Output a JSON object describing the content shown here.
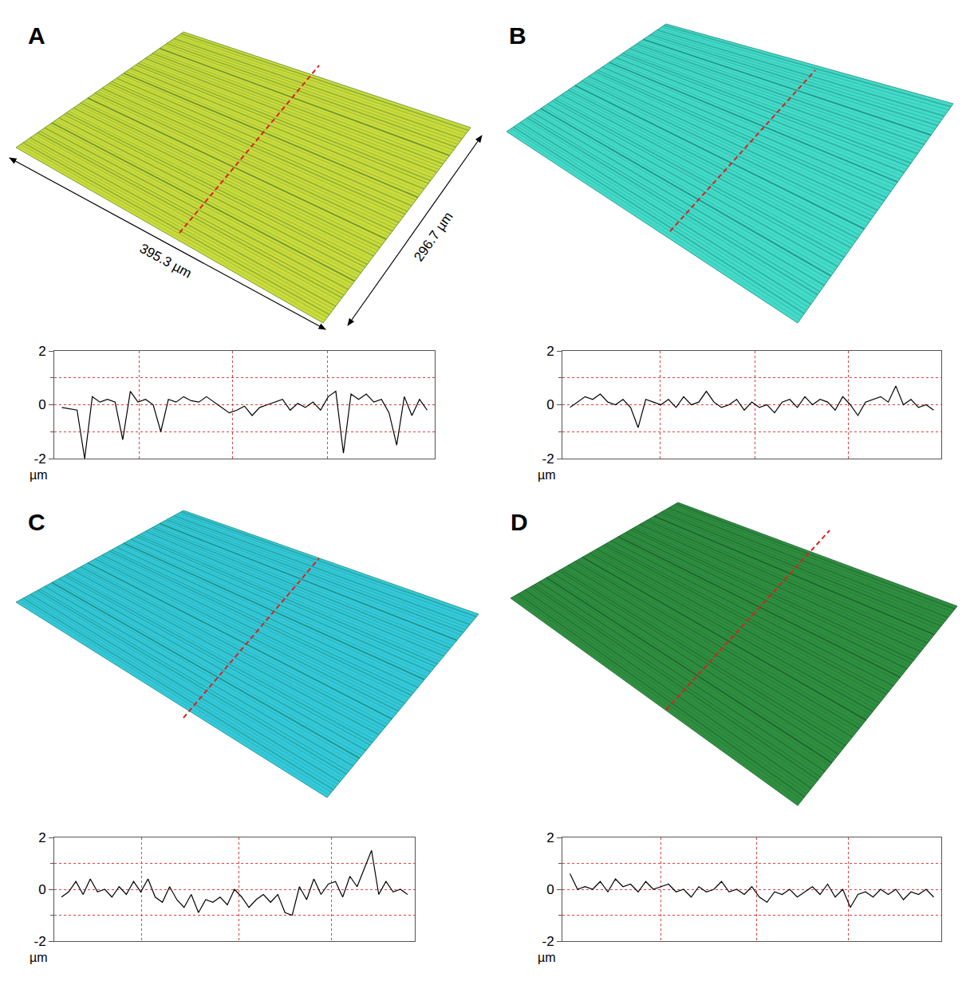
{
  "chart_data": [
    {
      "type": "line",
      "title": "A",
      "ylabel": "µm",
      "color": "#000000",
      "grid": true,
      "tick_labels": "y",
      "xlim": [
        0,
        100
      ],
      "xticks": [
        22.4,
        46.8,
        71.7
      ],
      "ylim": [
        -2,
        2
      ],
      "yticks": [
        -2,
        0,
        2
      ],
      "x": [
        2,
        4,
        6,
        8,
        10,
        12,
        14,
        16,
        18,
        20,
        22,
        24,
        26,
        28,
        30,
        32,
        34,
        36,
        38,
        40,
        42,
        44,
        46,
        48,
        50,
        52,
        54,
        56,
        58,
        60,
        62,
        64,
        66,
        68,
        70,
        72,
        74,
        76,
        78,
        80,
        82,
        84,
        86,
        88,
        90,
        92,
        94,
        96,
        98
      ],
      "values": [
        -0.1,
        -0.15,
        -0.2,
        -2.0,
        0.3,
        0.1,
        0.2,
        0.1,
        -1.3,
        0.5,
        0.1,
        0.2,
        0.0,
        -1.0,
        0.2,
        0.1,
        0.3,
        0.15,
        0.1,
        0.3,
        0.1,
        -0.1,
        -0.3,
        -0.2,
        -0.05,
        -0.4,
        -0.1,
        0.0,
        0.1,
        0.2,
        -0.2,
        0.05,
        -0.1,
        0.1,
        -0.2,
        0.3,
        0.5,
        -1.8,
        0.4,
        0.2,
        0.4,
        0.1,
        0.2,
        -0.3,
        -1.5,
        0.3,
        -0.4,
        0.2,
        -0.2
      ]
    },
    {
      "type": "line",
      "title": "B",
      "ylabel": "µm",
      "color": "#000000",
      "grid": true,
      "tick_labels": "y",
      "xlim": [
        0,
        100
      ],
      "xticks": [
        25.7,
        50.9,
        75.4
      ],
      "ylim": [
        -2,
        2
      ],
      "yticks": [
        -2,
        0,
        2
      ],
      "x": [
        2,
        4,
        6,
        8,
        10,
        12,
        14,
        16,
        18,
        20,
        22,
        24,
        26,
        28,
        30,
        32,
        34,
        36,
        38,
        40,
        42,
        44,
        46,
        48,
        50,
        52,
        54,
        56,
        58,
        60,
        62,
        64,
        66,
        68,
        70,
        72,
        74,
        76,
        78,
        80,
        82,
        84,
        86,
        88,
        90,
        92,
        94,
        96,
        98
      ],
      "values": [
        -0.1,
        0.1,
        0.3,
        0.2,
        0.4,
        0.1,
        0.0,
        0.2,
        -0.1,
        -0.85,
        0.2,
        0.1,
        0.0,
        0.2,
        -0.1,
        0.3,
        0.0,
        0.1,
        0.5,
        0.1,
        -0.1,
        0.0,
        0.2,
        -0.2,
        0.1,
        -0.1,
        0.0,
        -0.3,
        0.1,
        0.2,
        -0.1,
        0.3,
        0.0,
        0.2,
        0.1,
        -0.2,
        0.3,
        0.0,
        -0.4,
        0.1,
        0.2,
        0.3,
        0.1,
        0.7,
        0.0,
        0.2,
        -0.1,
        0.0,
        -0.2
      ]
    },
    {
      "type": "line",
      "title": "C",
      "ylabel": "µm",
      "color": "#000000",
      "grid": true,
      "tick_labels": "y",
      "xlim": [
        0,
        100
      ],
      "xticks": [
        24.3,
        51.3,
        76.8
      ],
      "ylim": [
        -2,
        2
      ],
      "yticks": [
        -2,
        0,
        2
      ],
      "x": [
        2,
        4,
        6,
        8,
        10,
        12,
        14,
        16,
        18,
        20,
        22,
        24,
        26,
        28,
        30,
        32,
        34,
        36,
        38,
        40,
        42,
        44,
        46,
        48,
        50,
        52,
        54,
        56,
        58,
        60,
        62,
        64,
        66,
        68,
        70,
        72,
        74,
        76,
        78,
        80,
        82,
        84,
        86,
        88,
        90,
        92,
        94,
        96,
        98
      ],
      "values": [
        -0.3,
        -0.1,
        0.3,
        -0.2,
        0.4,
        -0.1,
        0.0,
        -0.3,
        0.1,
        -0.2,
        0.3,
        -0.1,
        0.4,
        -0.3,
        -0.5,
        0.1,
        -0.4,
        -0.7,
        -0.2,
        -0.9,
        -0.4,
        -0.5,
        -0.3,
        -0.6,
        0.0,
        -0.3,
        -0.7,
        -0.4,
        -0.2,
        -0.5,
        -0.2,
        -0.9,
        -1.0,
        0.1,
        -0.4,
        0.4,
        -0.2,
        0.2,
        0.3,
        -0.3,
        0.5,
        0.1,
        0.8,
        1.5,
        -0.2,
        0.3,
        -0.1,
        0.0,
        -0.2
      ]
    },
    {
      "type": "line",
      "title": "D",
      "ylabel": "µm",
      "color": "#000000",
      "grid": true,
      "tick_labels": "y",
      "xlim": [
        0,
        100
      ],
      "xticks": [
        25.9,
        51.2,
        75.4
      ],
      "ylim": [
        -2,
        2
      ],
      "yticks": [
        -2,
        0,
        2
      ],
      "x": [
        2,
        4,
        6,
        8,
        10,
        12,
        14,
        16,
        18,
        20,
        22,
        24,
        26,
        28,
        30,
        32,
        34,
        36,
        38,
        40,
        42,
        44,
        46,
        48,
        50,
        52,
        54,
        56,
        58,
        60,
        62,
        64,
        66,
        68,
        70,
        72,
        74,
        76,
        78,
        80,
        82,
        84,
        86,
        88,
        90,
        92,
        94,
        96,
        98
      ],
      "values": [
        0.6,
        0.0,
        0.1,
        0.0,
        0.3,
        -0.1,
        0.4,
        0.1,
        0.2,
        -0.1,
        0.3,
        0.0,
        0.1,
        0.2,
        -0.1,
        0.0,
        -0.3,
        0.1,
        -0.1,
        0.0,
        0.3,
        -0.1,
        0.0,
        -0.2,
        0.1,
        -0.3,
        -0.5,
        -0.1,
        -0.2,
        0.0,
        -0.3,
        -0.1,
        0.1,
        -0.2,
        0.2,
        -0.3,
        0.0,
        -0.7,
        -0.2,
        -0.1,
        -0.3,
        0.0,
        -0.2,
        0.0,
        -0.4,
        -0.1,
        -0.2,
        0.0,
        -0.3
      ]
    }
  ],
  "surfaces": [
    {
      "color": "#cbdc3c",
      "stripe_color": "#5e8a2c",
      "width_label": "395.3 µm",
      "depth_label": "296.7 µm"
    },
    {
      "color": "#43dcc8",
      "stripe_color": "#1f8a82"
    },
    {
      "color": "#34cadc",
      "stripe_color": "#1e8a7a"
    },
    {
      "color": "#2f8f40",
      "stripe_color": "#1c5e2c"
    }
  ]
}
